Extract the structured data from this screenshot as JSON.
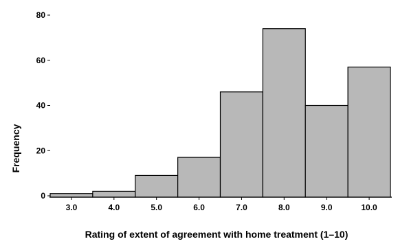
{
  "chart_data": {
    "type": "bar",
    "title": "",
    "xlabel": "Rating of extent of agreement with home treatment (1–10)",
    "ylabel": "Frequency",
    "categories": [
      "3.0",
      "4.0",
      "5.0",
      "6.0",
      "7.0",
      "8.0",
      "9.0",
      "10.0"
    ],
    "values": [
      1,
      2,
      9,
      17,
      46,
      74,
      40,
      57
    ],
    "ylim": [
      0,
      80
    ],
    "yticks": [
      0,
      20,
      40,
      60,
      80
    ],
    "grid": false,
    "bar_color": "#b8b8b8",
    "bar_edge_color": "#000000"
  }
}
